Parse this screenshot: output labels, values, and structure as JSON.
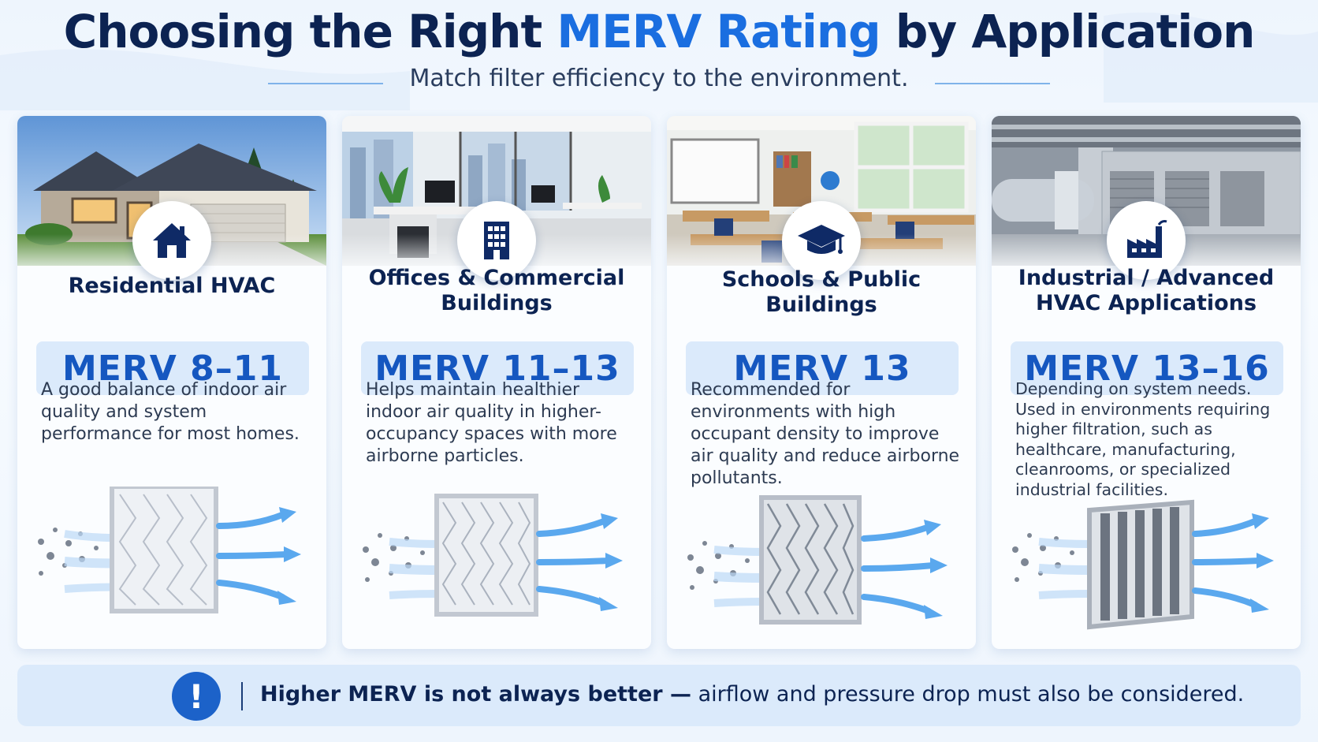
{
  "header": {
    "title_part1": "Choosing the Right ",
    "title_accent": "MERV Rating",
    "title_part2": " by Application",
    "subtitle": "Match filter efficiency to the environment."
  },
  "colors": {
    "navy": "#0c2352",
    "accent_blue": "#1a6ee0",
    "merv_text": "#1557c0",
    "merv_box_bg": "#dbeafb"
  },
  "cards": [
    {
      "icon": "house-icon",
      "title": "Residential HVAC",
      "rating": "MERV 8–11",
      "description": "A good balance of indoor air quality and system performance for most homes."
    },
    {
      "icon": "office-building-icon",
      "title": "Offices & Commercial Buildings",
      "rating": "MERV 11–13",
      "description": "Helps maintain healthier indoor air quality in higher-occupancy spaces with more airborne particles."
    },
    {
      "icon": "graduation-cap-icon",
      "title": "Schools & Public Buildings",
      "rating": "MERV 13",
      "description": "Recommended for environments with high occupant density to improve air quality and reduce airborne pollutants."
    },
    {
      "icon": "factory-icon",
      "title": "Industrial / Advanced HVAC Applications",
      "rating": "MERV 13–16",
      "description": "Depending on system needs. Used in environments requiring higher filtration, such as healthcare, manufacturing, cleanrooms, or specialized industrial facilities."
    }
  ],
  "footer": {
    "icon": "exclamation-icon",
    "bold": "Higher MERV is not always better —",
    "rest": " airflow and pressure drop must also be considered."
  }
}
